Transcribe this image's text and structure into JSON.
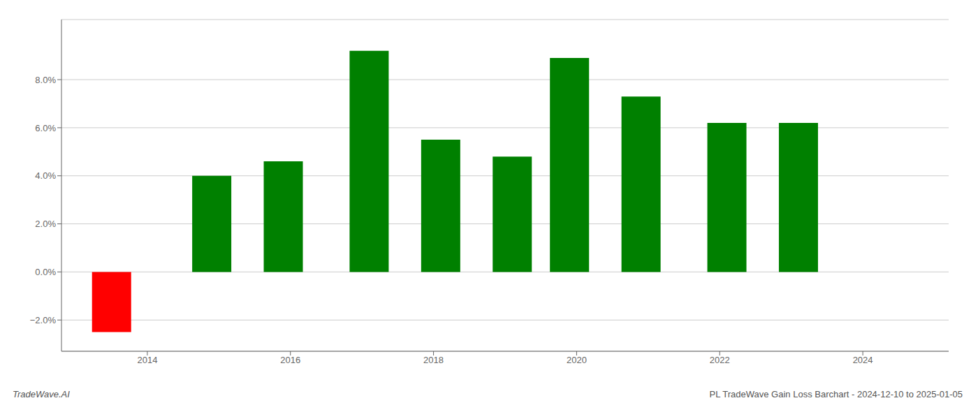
{
  "chart_data": {
    "type": "bar",
    "x": [
      2013.5,
      2014.9,
      2015.9,
      2017.1,
      2018.1,
      2019.1,
      2019.9,
      2020.9,
      2022.1,
      2023.1
    ],
    "values": [
      -0.025,
      0.04,
      0.046,
      0.092,
      0.055,
      0.048,
      0.089,
      0.073,
      0.062,
      0.062
    ],
    "colors": [
      "#ff0000",
      "#008000",
      "#008000",
      "#008000",
      "#008000",
      "#008000",
      "#008000",
      "#008000",
      "#008000",
      "#008000"
    ],
    "xlim": [
      2012.8,
      2025.2
    ],
    "xticks": [
      2014,
      2016,
      2018,
      2020,
      2022,
      2024
    ],
    "ylim": [
      -0.033,
      0.105
    ],
    "yticks": [
      {
        "value": -0.02,
        "label": "−2.0%"
      },
      {
        "value": 0.0,
        "label": "0.0%"
      },
      {
        "value": 0.02,
        "label": "2.0%"
      },
      {
        "value": 0.04,
        "label": "4.0%"
      },
      {
        "value": 0.06,
        "label": "6.0%"
      },
      {
        "value": 0.08,
        "label": "8.0%"
      }
    ],
    "grid": true,
    "annotations": [
      "TradeWave.AI",
      "PL TradeWave Gain Loss Barchart - 2024-12-10 to 2025-01-05"
    ]
  }
}
